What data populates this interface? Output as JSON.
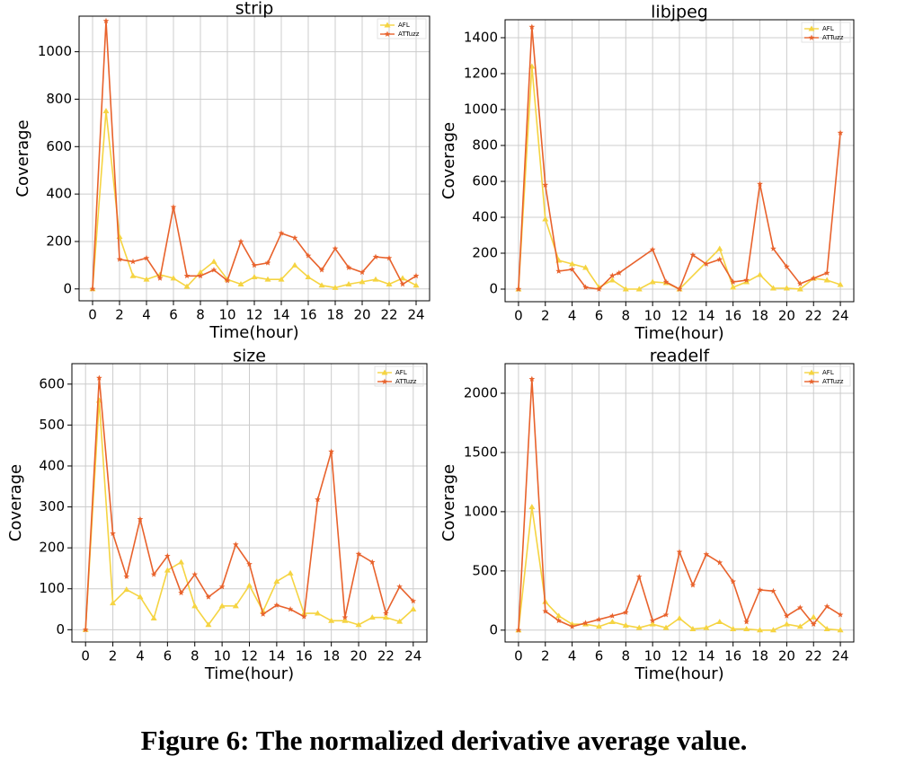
{
  "chart_data": [
    {
      "type": "line",
      "title": "strip",
      "xlabel": "Time(hour)",
      "ylabel": "Coverage",
      "x": [
        0,
        1,
        2,
        3,
        4,
        5,
        6,
        7,
        8,
        9,
        10,
        11,
        12,
        13,
        14,
        15,
        16,
        17,
        18,
        19,
        20,
        21,
        22,
        23,
        24
      ],
      "xlim": [
        -1,
        25
      ],
      "xticks": [
        0,
        2,
        4,
        6,
        8,
        10,
        12,
        14,
        16,
        18,
        20,
        22,
        24
      ],
      "ylim": [
        -50,
        1150
      ],
      "yticks": [
        0,
        200,
        400,
        600,
        800,
        1000
      ],
      "grid": true,
      "legend": "upper right",
      "series": [
        {
          "name": "AFL",
          "color": "#f5d442",
          "values": [
            0,
            750,
            220,
            55,
            40,
            60,
            45,
            10,
            70,
            115,
            40,
            20,
            50,
            40,
            40,
            100,
            50,
            15,
            5,
            20,
            30,
            40,
            20,
            45,
            15
          ]
        },
        {
          "name": "ATTuzz",
          "color": "#e8622c",
          "values": [
            0,
            1130,
            125,
            115,
            130,
            45,
            345,
            55,
            55,
            80,
            35,
            200,
            100,
            110,
            235,
            215,
            140,
            80,
            170,
            90,
            70,
            135,
            130,
            20,
            55
          ]
        }
      ]
    },
    {
      "type": "line",
      "title": "libjpeg",
      "xlabel": "Time(hour)",
      "ylabel": "Coverage",
      "xlim": [
        -1,
        25
      ],
      "xticks": [
        0,
        2,
        4,
        6,
        8,
        10,
        12,
        14,
        16,
        18,
        20,
        22,
        24
      ],
      "ylim": [
        -70,
        1500
      ],
      "yticks": [
        0,
        200,
        400,
        600,
        800,
        1000,
        1200,
        1400
      ],
      "grid": true,
      "legend": "upper right",
      "series": [
        {
          "name": "AFL",
          "color": "#f5d442",
          "x": [
            0,
            1,
            2,
            3,
            4,
            5,
            6,
            7,
            8,
            9,
            10,
            11,
            12,
            15,
            16,
            17,
            18,
            19,
            20,
            21,
            22,
            23,
            24
          ],
          "values": [
            0,
            1240,
            390,
            160,
            140,
            120,
            10,
            50,
            0,
            0,
            40,
            35,
            0,
            225,
            10,
            40,
            80,
            5,
            5,
            0,
            60,
            50,
            25
          ]
        },
        {
          "name": "ATTuzz",
          "color": "#e8622c",
          "x": [
            0,
            1,
            2,
            3,
            4,
            5,
            6,
            7,
            7.5,
            10,
            11,
            12,
            13,
            14,
            15,
            16,
            17,
            18,
            19,
            20,
            21,
            22,
            23,
            24
          ],
          "values": [
            0,
            1460,
            580,
            100,
            110,
            10,
            0,
            75,
            90,
            220,
            40,
            0,
            190,
            140,
            165,
            40,
            50,
            585,
            225,
            125,
            30,
            60,
            90,
            870
          ]
        }
      ]
    },
    {
      "type": "line",
      "title": "size",
      "xlabel": "Time(hour)",
      "ylabel": "Coverage",
      "x": [
        0,
        1,
        2,
        3,
        4,
        5,
        6,
        7,
        8,
        9,
        10,
        11,
        12,
        13,
        14,
        15,
        16,
        17,
        18,
        19,
        20,
        21,
        22,
        23,
        24
      ],
      "xlim": [
        -1,
        25
      ],
      "xticks": [
        0,
        2,
        4,
        6,
        8,
        10,
        12,
        14,
        16,
        18,
        20,
        22,
        24
      ],
      "ylim": [
        -30,
        650
      ],
      "yticks": [
        0,
        100,
        200,
        300,
        400,
        500,
        600
      ],
      "grid": true,
      "legend": "upper right",
      "series": [
        {
          "name": "AFL",
          "color": "#f5d442",
          "values": [
            0,
            560,
            65,
            98,
            80,
            28,
            145,
            165,
            58,
            12,
            58,
            58,
            108,
            45,
            118,
            138,
            40,
            40,
            22,
            22,
            12,
            30,
            30,
            20,
            50
          ]
        },
        {
          "name": "ATTuzz",
          "color": "#e8622c",
          "values": [
            0,
            615,
            235,
            130,
            270,
            135,
            180,
            90,
            135,
            80,
            105,
            208,
            160,
            38,
            60,
            50,
            32,
            318,
            435,
            30,
            185,
            165,
            40,
            105,
            70
          ]
        }
      ]
    },
    {
      "type": "line",
      "title": "readelf",
      "xlabel": "Time(hour)",
      "ylabel": "Coverage",
      "x": [
        0,
        1,
        2,
        3,
        4,
        5,
        6,
        7,
        8,
        9,
        10,
        11,
        12,
        13,
        14,
        15,
        16,
        17,
        18,
        19,
        20,
        21,
        22,
        23,
        24
      ],
      "xlim": [
        -1,
        25
      ],
      "xticks": [
        0,
        2,
        4,
        6,
        8,
        10,
        12,
        14,
        16,
        18,
        20,
        22,
        24
      ],
      "ylim": [
        -100,
        2250
      ],
      "yticks": [
        0,
        500,
        1000,
        1500,
        2000
      ],
      "grid": true,
      "legend": "upper right",
      "series": [
        {
          "name": "AFL",
          "color": "#f5d442",
          "values": [
            0,
            1040,
            240,
            120,
            50,
            50,
            30,
            70,
            40,
            20,
            50,
            20,
            100,
            10,
            20,
            70,
            10,
            10,
            0,
            0,
            50,
            30,
            110,
            10,
            0
          ]
        },
        {
          "name": "ATTuzz",
          "color": "#e8622c",
          "values": [
            0,
            2120,
            160,
            80,
            30,
            60,
            90,
            120,
            150,
            450,
            80,
            130,
            660,
            380,
            640,
            570,
            410,
            70,
            340,
            330,
            120,
            190,
            50,
            200,
            130
          ]
        }
      ]
    }
  ],
  "caption": "Figure 6: The normalized derivative average value."
}
